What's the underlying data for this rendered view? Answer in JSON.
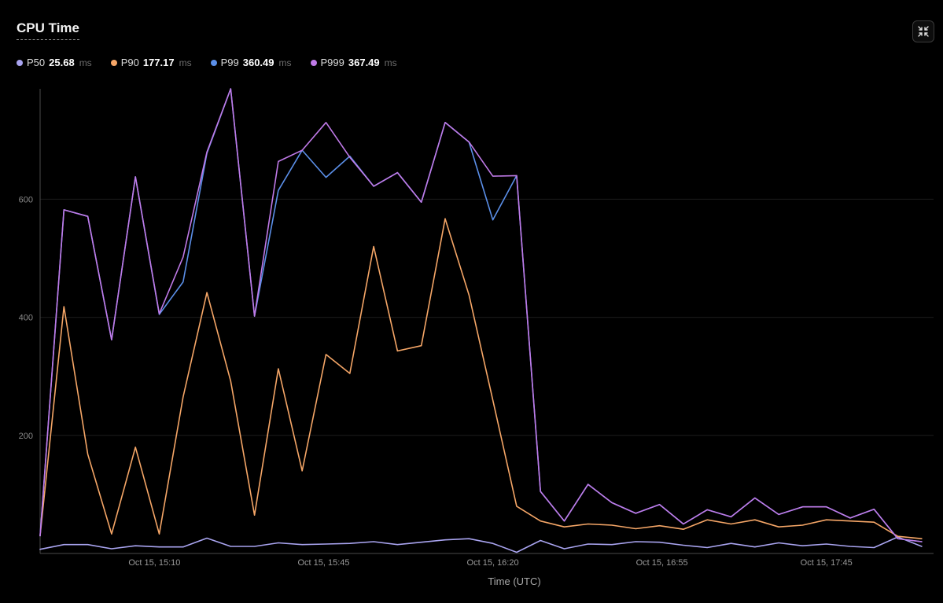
{
  "header": {
    "title": "CPU Time",
    "collapse_icon": "collapse-icon"
  },
  "legend": [
    {
      "name": "P50",
      "value": "25.68",
      "unit": "ms",
      "color": "#a9a4f0"
    },
    {
      "name": "P90",
      "value": "177.17",
      "unit": "ms",
      "color": "#f5a667"
    },
    {
      "name": "P99",
      "value": "360.49",
      "unit": "ms",
      "color": "#5b8fe8"
    },
    {
      "name": "P999",
      "value": "367.49",
      "unit": "ms",
      "color": "#c07ae8"
    }
  ],
  "chart_data": {
    "type": "line",
    "title": "CPU Time",
    "xlabel": "Time (UTC)",
    "ylabel": "",
    "ylim": [
      0,
      787
    ],
    "yticks": [
      200,
      400,
      600
    ],
    "xlim": [
      0,
      37.5
    ],
    "xticks": [
      {
        "at": 4.8,
        "label": "Oct 15, 15:10"
      },
      {
        "at": 11.9,
        "label": "Oct 15, 15:45"
      },
      {
        "at": 19.0,
        "label": "Oct 15, 16:20"
      },
      {
        "at": 26.1,
        "label": "Oct 15, 16:55"
      },
      {
        "at": 33.0,
        "label": "Oct 15, 17:45"
      }
    ],
    "grid": "horizontal",
    "x": [
      0,
      1,
      2,
      3,
      4,
      5,
      6,
      7,
      8,
      9,
      10,
      11,
      12,
      13,
      14,
      15,
      16,
      17,
      18,
      19,
      20,
      21,
      22,
      23,
      24,
      25,
      26,
      27,
      28,
      29,
      30,
      31,
      32,
      33,
      34,
      35,
      36,
      37
    ],
    "series": [
      {
        "name": "P50",
        "color": "#a9a4f0",
        "values": [
          7,
          15,
          15,
          8,
          13,
          11,
          11,
          26,
          12,
          12,
          18,
          15,
          16,
          17,
          20,
          15,
          19,
          23,
          25,
          17,
          2,
          22,
          8,
          16,
          15,
          20,
          19,
          14,
          10,
          17,
          11,
          18,
          13,
          16,
          12,
          10,
          28,
          12
        ]
      },
      {
        "name": "P90",
        "color": "#f5a667",
        "values": [
          30,
          418,
          168,
          33,
          180,
          33,
          265,
          442,
          292,
          65,
          313,
          140,
          337,
          305,
          520,
          343,
          352,
          567,
          438,
          260,
          80,
          55,
          45,
          50,
          48,
          42,
          47,
          41,
          57,
          50,
          57,
          45,
          48,
          57,
          55,
          53,
          29,
          25
        ]
      },
      {
        "name": "P99",
        "color": "#5b8fe8",
        "values": [
          30,
          582,
          571,
          362,
          638,
          405,
          460,
          678,
          787,
          402,
          615,
          683,
          637,
          673,
          622,
          645,
          595,
          730,
          697,
          565,
          640,
          105,
          55,
          117,
          86,
          68,
          83,
          50,
          74,
          62,
          94,
          66,
          79,
          79,
          60,
          75,
          25,
          20
        ]
      },
      {
        "name": "P999",
        "color": "#c07ae8",
        "values": [
          30,
          582,
          571,
          362,
          638,
          406,
          502,
          680,
          787,
          402,
          664,
          683,
          730,
          671,
          622,
          645,
          595,
          730,
          697,
          639,
          640,
          105,
          55,
          117,
          86,
          68,
          83,
          50,
          74,
          62,
          94,
          66,
          79,
          79,
          60,
          75,
          25,
          20
        ]
      }
    ]
  }
}
